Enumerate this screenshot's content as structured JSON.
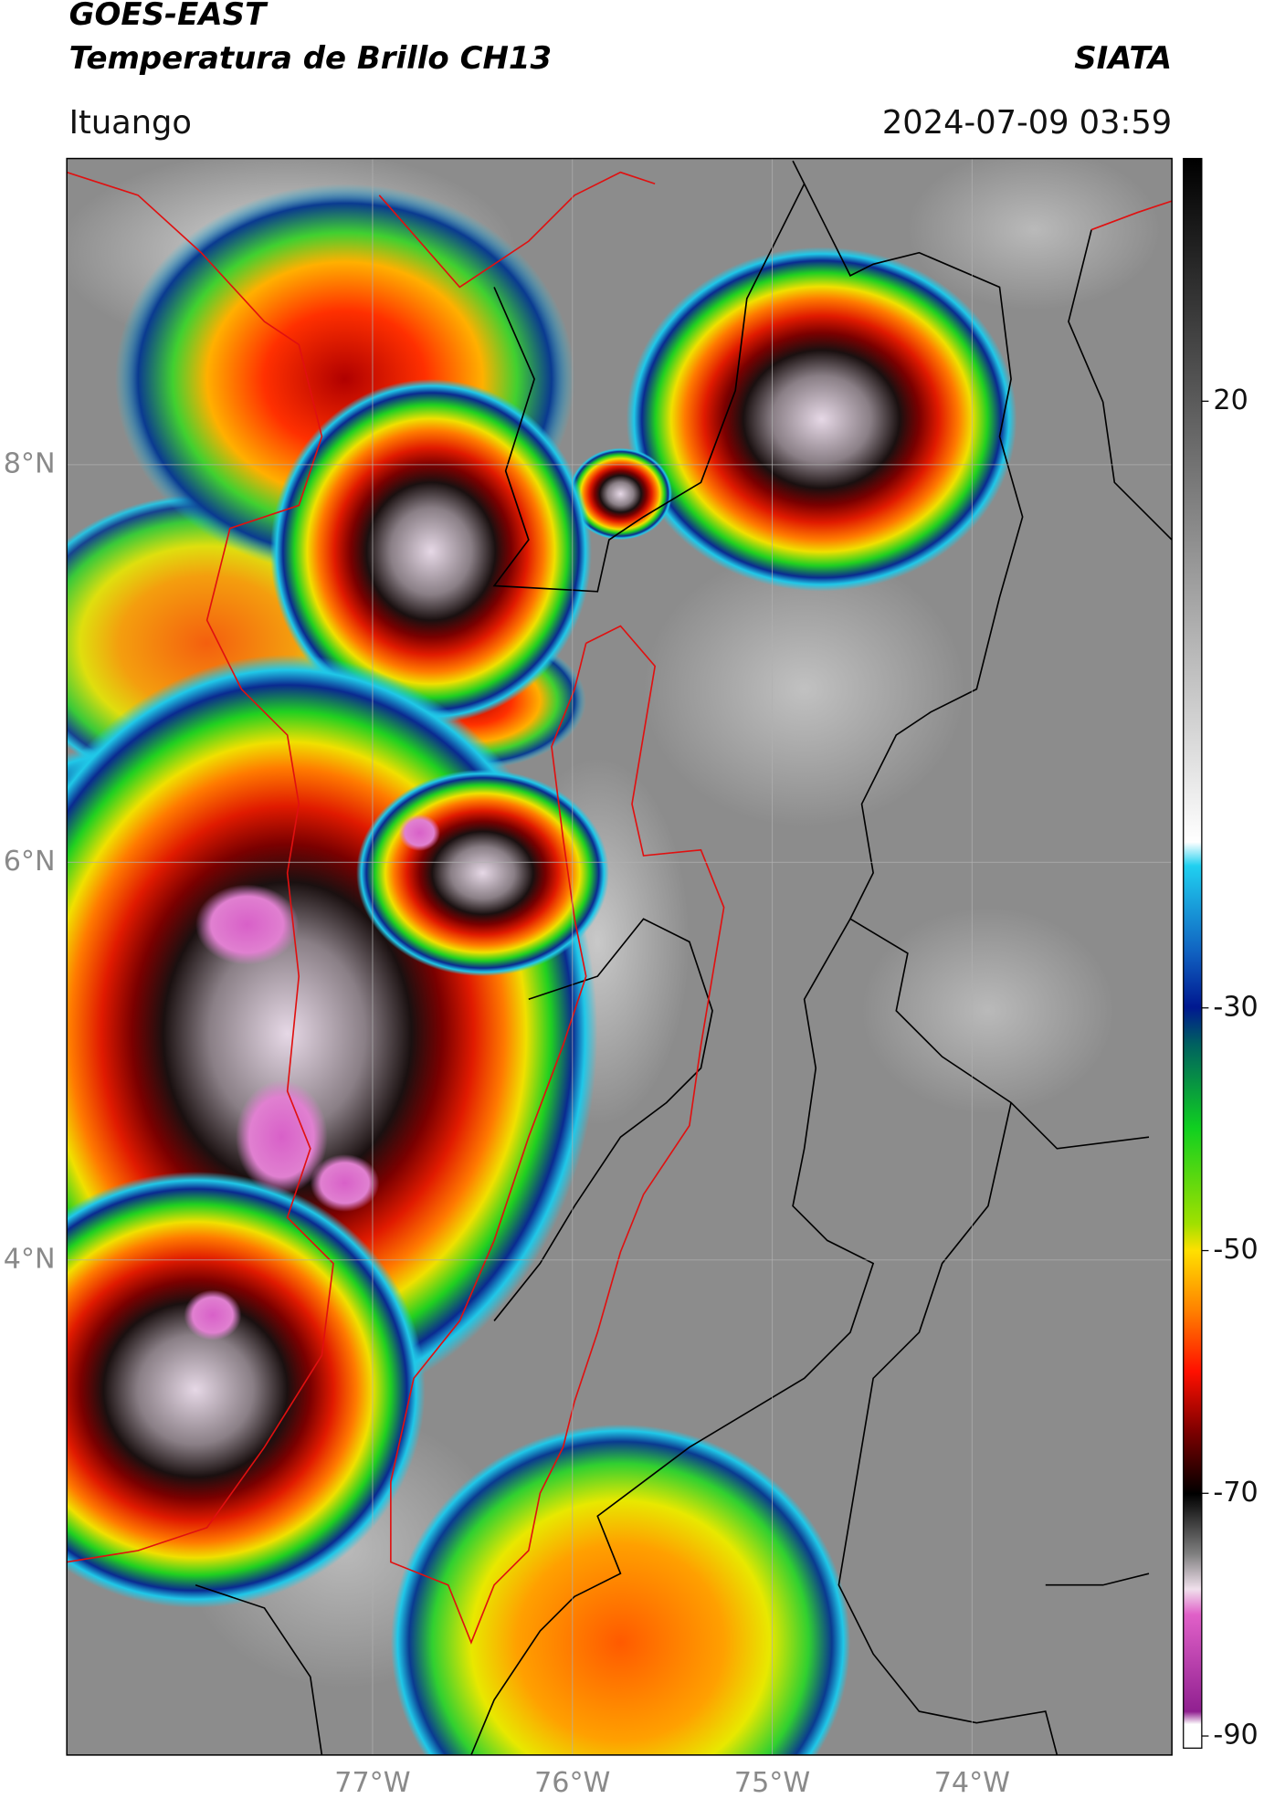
{
  "chart_data": {
    "type": "map",
    "title": "GOES-EAST",
    "subtitle": "Temperatura de Brillo CH13",
    "source": "SIATA",
    "region": "Ituango",
    "timestamp": "2024-07-09 03:59",
    "xlim": [
      -78.53,
      -73.0
    ],
    "ylim": [
      1.51,
      9.54
    ],
    "xticks": [
      {
        "value": -77,
        "label": "77°W"
      },
      {
        "value": -76,
        "label": "76°W"
      },
      {
        "value": -75,
        "label": "75°W"
      },
      {
        "value": -74,
        "label": "74°W"
      }
    ],
    "yticks": [
      {
        "value": 8,
        "label": "8°N"
      },
      {
        "value": 6,
        "label": "6°N"
      },
      {
        "value": 4,
        "label": "4°N"
      }
    ],
    "grid": true,
    "colorbar": {
      "lim": [
        -91,
        40
      ],
      "ticks": [
        20,
        -30,
        -50,
        -70,
        -90
      ]
    }
  }
}
